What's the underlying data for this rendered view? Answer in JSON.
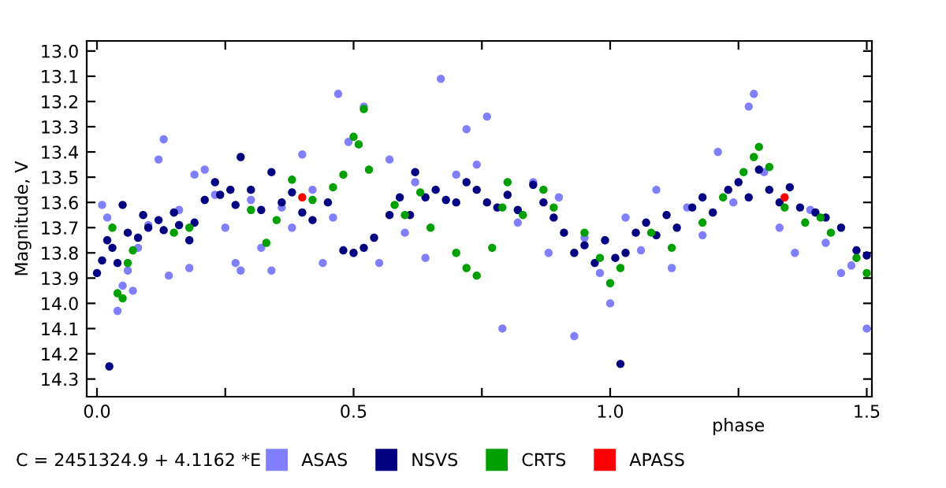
{
  "chart_data": {
    "type": "scatter",
    "xlabel": "phase",
    "ylabel": "Magnitude, V",
    "annotations": [
      "C = 2451324.9 + 4.1162 *E"
    ],
    "xlim": [
      -0.02,
      1.51
    ],
    "ylim": [
      14.37,
      12.96
    ],
    "xticks": [
      {
        "value": 0,
        "label": "0.0"
      },
      {
        "value": 0.25,
        "label": null
      },
      {
        "value": 0.5,
        "label": "0.5"
      },
      {
        "value": 0.75,
        "label": null
      },
      {
        "value": 1.0,
        "label": "1.0"
      },
      {
        "value": 1.25,
        "label": null
      },
      {
        "value": 1.5,
        "label": "1.5"
      }
    ],
    "yticks": [
      {
        "value": 13.0,
        "label": "13.0"
      },
      13.1,
      13.2,
      13.3,
      13.4,
      13.5,
      13.6,
      13.7,
      13.8,
      13.9,
      {
        "value": 14.0,
        "label": "14.0"
      },
      14.1,
      14.2,
      14.3
    ],
    "grid": false,
    "legend": "bottom",
    "marker": "circle",
    "series": [
      {
        "name": "ASAS",
        "color": "#8080ff",
        "x": [
          0.01,
          0.02,
          0.04,
          0.05,
          0.06,
          0.07,
          0.08,
          0.1,
          0.12,
          0.13,
          0.14,
          0.16,
          0.18,
          0.19,
          0.21,
          0.23,
          0.25,
          0.27,
          0.28,
          0.3,
          0.32,
          0.34,
          0.36,
          0.38,
          0.4,
          0.42,
          0.44,
          0.46,
          0.47,
          0.49,
          0.52,
          0.55,
          0.57,
          0.6,
          0.62,
          0.64,
          0.67,
          0.7,
          0.72,
          0.74,
          0.76,
          0.79,
          0.82,
          0.85,
          0.88,
          0.9,
          0.93,
          0.95,
          0.98,
          1.0,
          1.03,
          1.06,
          1.09,
          1.12,
          1.15,
          1.18,
          1.21,
          1.24,
          1.27,
          1.28,
          1.3,
          1.33,
          1.36,
          1.39,
          1.42,
          1.45,
          1.47,
          1.5
        ],
        "values": [
          13.61,
          13.66,
          14.03,
          13.93,
          13.87,
          13.95,
          13.78,
          13.69,
          13.43,
          13.35,
          13.89,
          13.63,
          13.86,
          13.49,
          13.47,
          13.57,
          13.7,
          13.84,
          13.87,
          13.59,
          13.78,
          13.87,
          13.62,
          13.7,
          13.41,
          13.55,
          13.84,
          13.66,
          13.17,
          13.36,
          13.22,
          13.84,
          13.43,
          13.72,
          13.52,
          13.82,
          13.11,
          13.49,
          13.31,
          13.45,
          13.26,
          14.1,
          13.68,
          13.52,
          13.8,
          13.58,
          14.13,
          13.74,
          13.88,
          14.0,
          13.66,
          13.79,
          13.55,
          13.86,
          13.62,
          13.73,
          13.4,
          13.6,
          13.22,
          13.17,
          13.48,
          13.7,
          13.8,
          13.63,
          13.76,
          13.88,
          13.85,
          14.1
        ]
      },
      {
        "name": "NSVS",
        "color": "#000080",
        "x": [
          0.0,
          0.01,
          0.02,
          0.024,
          0.03,
          0.04,
          0.05,
          0.06,
          0.08,
          0.09,
          0.1,
          0.12,
          0.13,
          0.15,
          0.16,
          0.18,
          0.19,
          0.21,
          0.23,
          0.24,
          0.26,
          0.27,
          0.28,
          0.3,
          0.32,
          0.34,
          0.36,
          0.38,
          0.4,
          0.42,
          0.45,
          0.48,
          0.5,
          0.52,
          0.54,
          0.57,
          0.59,
          0.61,
          0.62,
          0.64,
          0.66,
          0.68,
          0.7,
          0.72,
          0.74,
          0.76,
          0.78,
          0.8,
          0.82,
          0.85,
          0.87,
          0.89,
          0.91,
          0.93,
          0.95,
          0.97,
          0.99,
          1.01,
          1.02,
          1.03,
          1.05,
          1.07,
          1.09,
          1.11,
          1.13,
          1.16,
          1.18,
          1.2,
          1.23,
          1.25,
          1.27,
          1.29,
          1.31,
          1.33,
          1.35,
          1.37,
          1.4,
          1.42,
          1.45,
          1.48,
          1.5
        ],
        "values": [
          13.88,
          13.83,
          13.75,
          14.25,
          13.78,
          13.84,
          13.61,
          13.72,
          13.74,
          13.65,
          13.7,
          13.67,
          13.71,
          13.64,
          13.69,
          13.75,
          13.68,
          13.59,
          13.52,
          13.57,
          13.55,
          13.61,
          13.42,
          13.55,
          13.63,
          13.48,
          13.6,
          13.56,
          13.64,
          13.67,
          13.6,
          13.79,
          13.8,
          13.78,
          13.74,
          13.65,
          13.58,
          13.65,
          13.48,
          13.58,
          13.55,
          13.59,
          13.6,
          13.52,
          13.55,
          13.6,
          13.62,
          13.57,
          13.63,
          13.53,
          13.6,
          13.66,
          13.72,
          13.8,
          13.77,
          13.84,
          13.75,
          13.82,
          14.24,
          13.8,
          13.72,
          13.68,
          13.73,
          13.65,
          13.7,
          13.62,
          13.58,
          13.64,
          13.55,
          13.52,
          13.58,
          13.47,
          13.55,
          13.6,
          13.54,
          13.62,
          13.64,
          13.66,
          13.7,
          13.79,
          13.81
        ]
      },
      {
        "name": "CRTS",
        "color": "#00a000",
        "x": [
          0.03,
          0.04,
          0.05,
          0.06,
          0.07,
          0.15,
          0.18,
          0.3,
          0.33,
          0.35,
          0.38,
          0.42,
          0.46,
          0.48,
          0.5,
          0.51,
          0.52,
          0.53,
          0.58,
          0.6,
          0.63,
          0.65,
          0.7,
          0.72,
          0.74,
          0.77,
          0.79,
          0.8,
          0.83,
          0.87,
          0.89,
          0.95,
          0.98,
          1.0,
          1.02,
          1.08,
          1.12,
          1.18,
          1.22,
          1.26,
          1.28,
          1.29,
          1.31,
          1.34,
          1.38,
          1.41,
          1.43,
          1.48,
          1.5
        ],
        "values": [
          13.7,
          13.96,
          13.98,
          13.84,
          13.79,
          13.72,
          13.7,
          13.63,
          13.76,
          13.67,
          13.51,
          13.59,
          13.54,
          13.49,
          13.34,
          13.37,
          13.23,
          13.47,
          13.61,
          13.65,
          13.56,
          13.7,
          13.8,
          13.86,
          13.89,
          13.78,
          13.62,
          13.52,
          13.65,
          13.55,
          13.62,
          13.72,
          13.82,
          13.92,
          13.86,
          13.72,
          13.78,
          13.68,
          13.58,
          13.48,
          13.42,
          13.38,
          13.46,
          13.62,
          13.68,
          13.66,
          13.72,
          13.82,
          13.88
        ]
      },
      {
        "name": "APASS",
        "color": "#ff0000",
        "x": [
          0.4,
          1.34
        ],
        "values": [
          13.58,
          13.58
        ]
      }
    ]
  }
}
